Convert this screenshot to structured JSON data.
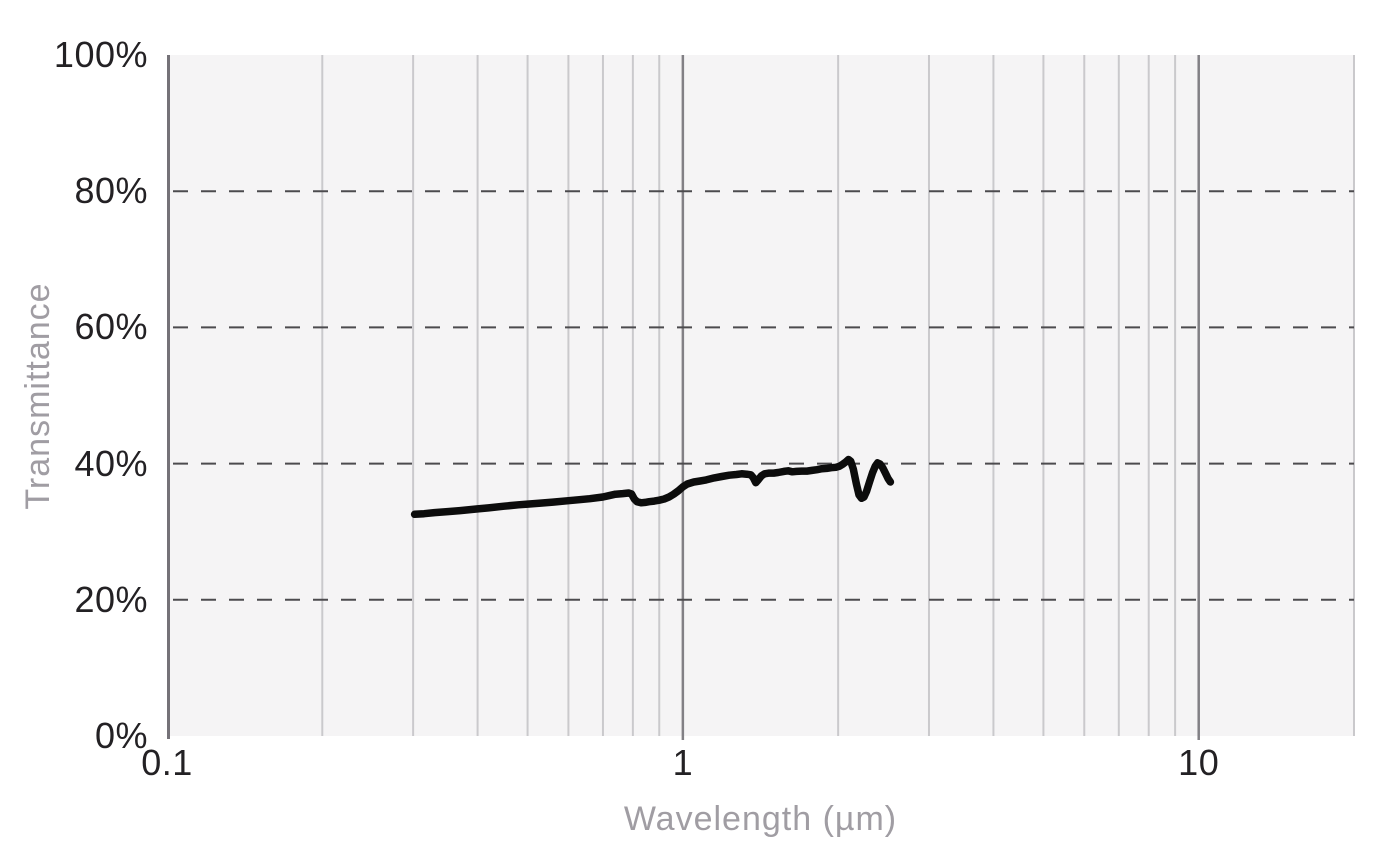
{
  "page": {
    "background": "#ffffff"
  },
  "chart_data": {
    "type": "line",
    "title": "",
    "xlabel": "Wavelength (µm)",
    "ylabel": "Transmittance",
    "x_scale": "log",
    "xlim": [
      0.1,
      20
    ],
    "ylim": [
      0,
      100
    ],
    "grid": true,
    "legend_position": "none",
    "x_ticks": [
      {
        "value": 0.1,
        "label": "0.1"
      },
      {
        "value": 1,
        "label": "1"
      },
      {
        "value": 10,
        "label": "10"
      }
    ],
    "y_ticks": [
      {
        "value": 0,
        "label": "0%"
      },
      {
        "value": 20,
        "label": "20%"
      },
      {
        "value": 40,
        "label": "40%"
      },
      {
        "value": 60,
        "label": "60%"
      },
      {
        "value": 80,
        "label": "80%"
      },
      {
        "value": 100,
        "label": "100%"
      }
    ],
    "x_gridlines_minor": [
      0.2,
      0.3,
      0.4,
      0.5,
      0.6,
      0.7,
      0.8,
      0.9,
      2,
      3,
      4,
      5,
      6,
      7,
      8,
      9,
      20
    ],
    "x_gridlines_major": [
      1,
      10
    ],
    "y_gridlines_dashed": [
      20,
      40,
      60,
      80
    ],
    "series": [
      {
        "name": "Transmittance",
        "color": "#0c0c0c",
        "points": [
          [
            0.302,
            32.55
          ],
          [
            0.315,
            32.65
          ],
          [
            0.33,
            32.8
          ],
          [
            0.35,
            32.95
          ],
          [
            0.37,
            33.1
          ],
          [
            0.4,
            33.35
          ],
          [
            0.42,
            33.5
          ],
          [
            0.45,
            33.75
          ],
          [
            0.48,
            33.95
          ],
          [
            0.5,
            34.05
          ],
          [
            0.53,
            34.2
          ],
          [
            0.56,
            34.35
          ],
          [
            0.6,
            34.55
          ],
          [
            0.63,
            34.7
          ],
          [
            0.66,
            34.85
          ],
          [
            0.7,
            35.1
          ],
          [
            0.72,
            35.3
          ],
          [
            0.74,
            35.5
          ],
          [
            0.765,
            35.6
          ],
          [
            0.785,
            35.68
          ],
          [
            0.795,
            35.55
          ],
          [
            0.805,
            34.8
          ],
          [
            0.815,
            34.4
          ],
          [
            0.83,
            34.25
          ],
          [
            0.845,
            34.3
          ],
          [
            0.86,
            34.4
          ],
          [
            0.88,
            34.5
          ],
          [
            0.9,
            34.62
          ],
          [
            0.92,
            34.8
          ],
          [
            0.94,
            35.1
          ],
          [
            0.96,
            35.5
          ],
          [
            0.98,
            36.0
          ],
          [
            1.0,
            36.6
          ],
          [
            1.02,
            37.0
          ],
          [
            1.05,
            37.3
          ],
          [
            1.08,
            37.45
          ],
          [
            1.11,
            37.6
          ],
          [
            1.15,
            37.9
          ],
          [
            1.19,
            38.1
          ],
          [
            1.23,
            38.3
          ],
          [
            1.27,
            38.4
          ],
          [
            1.3,
            38.5
          ],
          [
            1.33,
            38.45
          ],
          [
            1.355,
            38.35
          ],
          [
            1.37,
            37.9
          ],
          [
            1.385,
            37.2
          ],
          [
            1.4,
            37.6
          ],
          [
            1.42,
            38.2
          ],
          [
            1.44,
            38.5
          ],
          [
            1.47,
            38.6
          ],
          [
            1.5,
            38.6
          ],
          [
            1.53,
            38.7
          ],
          [
            1.57,
            38.85
          ],
          [
            1.6,
            38.95
          ],
          [
            1.63,
            38.8
          ],
          [
            1.66,
            38.85
          ],
          [
            1.7,
            38.9
          ],
          [
            1.74,
            38.9
          ],
          [
            1.78,
            39.0
          ],
          [
            1.82,
            39.1
          ],
          [
            1.86,
            39.25
          ],
          [
            1.9,
            39.3
          ],
          [
            1.94,
            39.4
          ],
          [
            1.98,
            39.45
          ],
          [
            2.01,
            39.6
          ],
          [
            2.04,
            39.9
          ],
          [
            2.07,
            40.25
          ],
          [
            2.095,
            40.6
          ],
          [
            2.115,
            40.35
          ],
          [
            2.14,
            39.2
          ],
          [
            2.17,
            37.0
          ],
          [
            2.195,
            35.4
          ],
          [
            2.22,
            34.9
          ],
          [
            2.245,
            35.1
          ],
          [
            2.27,
            35.9
          ],
          [
            2.3,
            37.3
          ],
          [
            2.33,
            38.6
          ],
          [
            2.36,
            39.6
          ],
          [
            2.385,
            40.1
          ],
          [
            2.41,
            39.95
          ],
          [
            2.44,
            39.4
          ],
          [
            2.47,
            38.6
          ],
          [
            2.5,
            37.8
          ],
          [
            2.525,
            37.3
          ]
        ]
      }
    ]
  },
  "colors": {
    "plot_background": "#f5f4f5",
    "grid_minor": "#cac9cc",
    "grid_major": "#828085",
    "grid_dashed": "#4c4b4e",
    "axis_line": "#757278",
    "tick_label": "#232124",
    "axis_title": "#a09da3",
    "series_line": "#0c0c0c"
  }
}
